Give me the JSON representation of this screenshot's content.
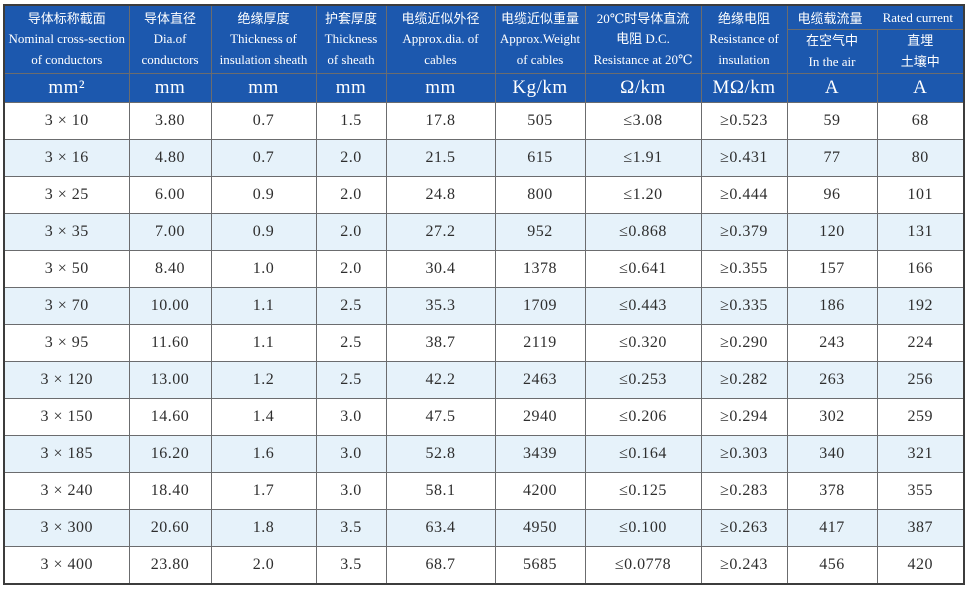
{
  "colors": {
    "header_bg": "#1c58ae",
    "alt_row_bg": "#e6f2fa",
    "grid_line": "#6b6c6e",
    "outer_border": "#3c3c3c",
    "header_text": "#ffffff",
    "body_text": "#2e2e2e"
  },
  "table": {
    "columns": [
      {
        "lines": [
          "导体标称截面",
          "Nominal cross-section",
          "of conductors"
        ]
      },
      {
        "lines": [
          "导体直径",
          "Dia.of",
          "conductors"
        ]
      },
      {
        "lines": [
          "绝缘厚度",
          "Thickness of",
          "insulation sheath"
        ]
      },
      {
        "lines": [
          "护套厚度",
          "Thickness",
          "of sheath"
        ]
      },
      {
        "lines": [
          "电缆近似外径",
          "Approx.dia. of",
          "cables"
        ]
      },
      {
        "lines": [
          "电缆近似重量",
          "Approx.Weight",
          "of cables"
        ]
      },
      {
        "lines": [
          "20℃时导体直流",
          "电阻 D.C.",
          "Resistance at 20℃"
        ]
      },
      {
        "lines": [
          "绝缘电阻",
          "Resistance of",
          "insulation"
        ]
      },
      {
        "lines": [
          "在空气中",
          "In the air"
        ]
      },
      {
        "lines": [
          "直埋",
          "土壤中"
        ]
      }
    ],
    "current_rating_header": {
      "cn": "电缆载流量",
      "en": "Rated current"
    },
    "units": [
      "mm²",
      "mm",
      "mm",
      "mm",
      "mm",
      "Kg/km",
      "Ω/km",
      "MΩ/km",
      "A",
      "A"
    ],
    "rows": [
      [
        "3 × 10",
        "3.80",
        "0.7",
        "1.5",
        "17.8",
        "505",
        "≤3.08",
        "≥0.523",
        "59",
        "68"
      ],
      [
        "3 × 16",
        "4.80",
        "0.7",
        "2.0",
        "21.5",
        "615",
        "≤1.91",
        "≥0.431",
        "77",
        "80"
      ],
      [
        "3 × 25",
        "6.00",
        "0.9",
        "2.0",
        "24.8",
        "800",
        "≤1.20",
        "≥0.444",
        "96",
        "101"
      ],
      [
        "3 × 35",
        "7.00",
        "0.9",
        "2.0",
        "27.2",
        "952",
        "≤0.868",
        "≥0.379",
        "120",
        "131"
      ],
      [
        "3 × 50",
        "8.40",
        "1.0",
        "2.0",
        "30.4",
        "1378",
        "≤0.641",
        "≥0.355",
        "157",
        "166"
      ],
      [
        "3 × 70",
        "10.00",
        "1.1",
        "2.5",
        "35.3",
        "1709",
        "≤0.443",
        "≥0.335",
        "186",
        "192"
      ],
      [
        "3 × 95",
        "11.60",
        "1.1",
        "2.5",
        "38.7",
        "2119",
        "≤0.320",
        "≥0.290",
        "243",
        "224"
      ],
      [
        "3 × 120",
        "13.00",
        "1.2",
        "2.5",
        "42.2",
        "2463",
        "≤0.253",
        "≥0.282",
        "263",
        "256"
      ],
      [
        "3 × 150",
        "14.60",
        "1.4",
        "3.0",
        "47.5",
        "2940",
        "≤0.206",
        "≥0.294",
        "302",
        "259"
      ],
      [
        "3 × 185",
        "16.20",
        "1.6",
        "3.0",
        "52.8",
        "3439",
        "≤0.164",
        "≥0.303",
        "340",
        "321"
      ],
      [
        "3 × 240",
        "18.40",
        "1.7",
        "3.0",
        "58.1",
        "4200",
        "≤0.125",
        "≥0.283",
        "378",
        "355"
      ],
      [
        "3 × 300",
        "20.60",
        "1.8",
        "3.5",
        "63.4",
        "4950",
        "≤0.100",
        "≥0.263",
        "417",
        "387"
      ],
      [
        "3 × 400",
        "23.80",
        "2.0",
        "3.5",
        "68.7",
        "5685",
        "≤0.0778",
        "≥0.243",
        "456",
        "420"
      ]
    ]
  }
}
